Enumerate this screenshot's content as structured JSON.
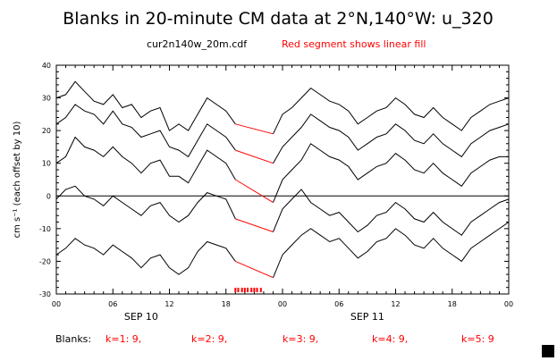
{
  "chart_data": {
    "type": "line",
    "title": "Blanks in 20-minute CM data at 2°N,140°W: u_320",
    "subtitle_left": "cur2n140w_20m.cdf",
    "subtitle_right": "Red segment shows linear fill",
    "ylabel": "cm s⁻¹ (each offset by 10)",
    "ylim": [
      -30,
      40
    ],
    "yticks": [
      -30,
      -20,
      -10,
      0,
      10,
      20,
      30,
      40
    ],
    "xlim_hours": [
      0,
      48
    ],
    "xtick_labels": [
      "00",
      "06",
      "12",
      "18",
      "00",
      "06",
      "12",
      "18",
      "00"
    ],
    "xdate_labels": [
      {
        "hour": 9,
        "label": "SEP 10"
      },
      {
        "hour": 33,
        "label": "SEP 11"
      }
    ],
    "fill_segment_hours": [
      19,
      23
    ],
    "gap_marker_hours": [
      19.0,
      19.3,
      19.7,
      20.0,
      20.3,
      20.7,
      21.0,
      21.3,
      21.7
    ],
    "series_anchor_hours": [
      0,
      1,
      2,
      3,
      4,
      5,
      6,
      7,
      8,
      9,
      10,
      11,
      12,
      13,
      14,
      15,
      16,
      17,
      18,
      19,
      23,
      24,
      25,
      26,
      27,
      28,
      29,
      30,
      31,
      32,
      33,
      34,
      35,
      36,
      37,
      38,
      39,
      40,
      41,
      42,
      43,
      44,
      45,
      46,
      47,
      48
    ],
    "series": [
      {
        "offset": 10,
        "values": [
          30,
          31,
          35,
          32,
          29,
          28,
          31,
          27,
          28,
          24,
          26,
          27,
          20,
          22,
          20,
          25,
          30,
          28,
          26,
          22,
          19,
          25,
          27,
          30,
          33,
          31,
          29,
          28,
          26,
          22,
          24,
          26,
          27,
          30,
          28,
          25,
          24,
          27,
          24,
          22,
          20,
          24,
          26,
          28,
          29,
          30
        ]
      },
      {
        "offset": 10,
        "values": [
          22,
          24,
          28,
          26,
          25,
          22,
          26,
          22,
          21,
          18,
          19,
          20,
          15,
          14,
          12,
          17,
          22,
          20,
          18,
          14,
          10,
          15,
          18,
          21,
          25,
          23,
          21,
          20,
          18,
          14,
          16,
          18,
          19,
          22,
          20,
          17,
          16,
          19,
          16,
          14,
          12,
          16,
          18,
          20,
          21,
          22
        ]
      },
      {
        "offset": 10,
        "values": [
          10,
          12,
          18,
          15,
          14,
          12,
          15,
          12,
          10,
          7,
          10,
          11,
          6,
          6,
          4,
          9,
          14,
          12,
          10,
          5,
          -2,
          5,
          8,
          11,
          16,
          14,
          12,
          11,
          9,
          5,
          7,
          9,
          10,
          13,
          11,
          8,
          7,
          10,
          7,
          5,
          3,
          7,
          9,
          11,
          12,
          12
        ]
      },
      {
        "offset": 10,
        "values": [
          -1,
          2,
          3,
          0,
          -1,
          -3,
          0,
          -2,
          -4,
          -6,
          -3,
          -2,
          -6,
          -8,
          -6,
          -2,
          1,
          0,
          -1,
          -7,
          -11,
          -4,
          -1,
          2,
          -2,
          -4,
          -6,
          -5,
          -8,
          -11,
          -9,
          -6,
          -5,
          -2,
          -4,
          -7,
          -8,
          -5,
          -8,
          -10,
          -12,
          -8,
          -6,
          -4,
          -2,
          -1
        ]
      },
      {
        "offset": 10,
        "values": [
          -18,
          -16,
          -13,
          -15,
          -16,
          -18,
          -15,
          -17,
          -19,
          -22,
          -19,
          -18,
          -22,
          -24,
          -22,
          -17,
          -14,
          -15,
          -16,
          -20,
          -25,
          -18,
          -15,
          -12,
          -10,
          -12,
          -14,
          -13,
          -16,
          -19,
          -17,
          -14,
          -13,
          -10,
          -12,
          -15,
          -16,
          -13,
          -16,
          -18,
          -20,
          -16,
          -14,
          -12,
          -10,
          -8
        ]
      }
    ]
  },
  "blanks": {
    "label": "Blanks:",
    "items": [
      "k=1: 9,",
      "k=2: 9,",
      "k=3: 9,",
      "k=4: 9,",
      "k=5: 9"
    ]
  },
  "colors": {
    "data": "#000000",
    "fill": "#ff0000",
    "blanks": "#ff0000",
    "axes": "#000000"
  }
}
